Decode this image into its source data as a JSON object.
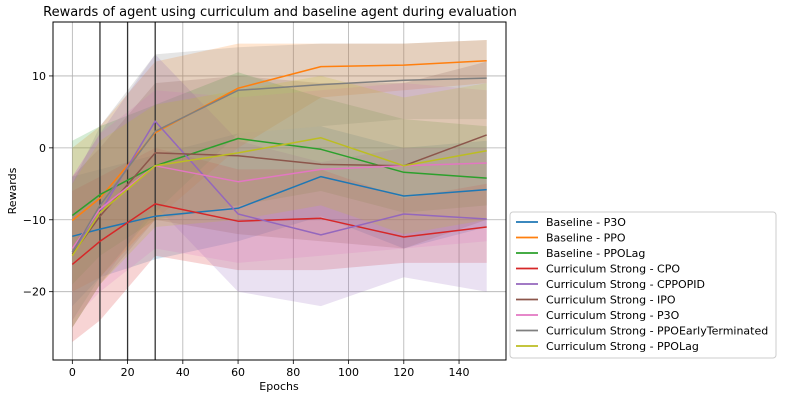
{
  "chart_data": {
    "type": "line",
    "title": "Rewards of agent using curriculum and baseline agent during evaluation",
    "xlabel": "Epochs",
    "ylabel": "Rewards",
    "xlim": [
      -7,
      157
    ],
    "ylim": [
      -29.5,
      17.5
    ],
    "xticks": [
      0,
      20,
      40,
      60,
      80,
      100,
      120,
      140
    ],
    "yticks": [
      -20,
      -10,
      0,
      10
    ],
    "grid": true,
    "legend_position": "outside-right",
    "vertical_markers": [
      10,
      20,
      30
    ],
    "x": [
      0,
      10,
      30,
      60,
      90,
      120,
      150
    ],
    "series": [
      {
        "name": "Baseline - P3O",
        "color": "#1f77b4",
        "values": [
          -12.3,
          -11.3,
          -9.5,
          -8.4,
          -4.0,
          -6.7,
          -5.8
        ],
        "lower": [
          -22,
          -18,
          -15.5,
          -13,
          -9.5,
          -14,
          -11
        ],
        "upper": [
          -4,
          -3,
          -1,
          2,
          3,
          0,
          1
        ]
      },
      {
        "name": "Baseline - PPO",
        "color": "#ff7f0e",
        "values": [
          -10.1,
          -7.0,
          2.1,
          8.3,
          11.3,
          11.5,
          12.1
        ],
        "lower": [
          -20,
          -18,
          -10,
          0,
          7,
          8,
          9
        ],
        "upper": [
          0,
          3,
          12,
          14.5,
          14.5,
          14.5,
          15
        ]
      },
      {
        "name": "Baseline - PPOLag",
        "color": "#2ca02c",
        "values": [
          -9.4,
          -6.5,
          -2.5,
          1.3,
          -0.2,
          -3.4,
          -4.2
        ],
        "lower": [
          -19,
          -15,
          -10,
          -8,
          -6,
          -9,
          -8
        ],
        "upper": [
          1,
          3,
          6,
          10.5,
          7,
          4,
          3
        ]
      },
      {
        "name": "Curriculum Strong - CPO",
        "color": "#d62728",
        "values": [
          -16.2,
          -13.0,
          -7.8,
          -10.2,
          -9.8,
          -12.4,
          -11.0
        ],
        "lower": [
          -27,
          -24,
          -15,
          -17,
          -17,
          -16,
          -16
        ],
        "upper": [
          -6,
          -4,
          0,
          -3,
          -3,
          -7,
          -5
        ]
      },
      {
        "name": "Curriculum Strong - CPPOPID",
        "color": "#9467bd",
        "values": [
          -14.5,
          -9.0,
          3.7,
          -9.2,
          -12.1,
          -9.2,
          -9.9
        ],
        "lower": [
          -25,
          -19,
          -8,
          -20,
          -22,
          -18,
          -20
        ],
        "upper": [
          -4,
          2,
          13,
          1,
          -2,
          0,
          0
        ]
      },
      {
        "name": "Curriculum Strong - IPO",
        "color": "#8c564b",
        "values": [
          -14.8,
          -9.5,
          -0.7,
          -1.1,
          -2.3,
          -2.5,
          1.8
        ],
        "lower": [
          -25,
          -19,
          -10,
          -12,
          -13,
          -14,
          -10
        ],
        "upper": [
          -4,
          0,
          9,
          10,
          9,
          9,
          12
        ]
      },
      {
        "name": "Curriculum Strong - P3O",
        "color": "#e377c2",
        "values": [
          -14.0,
          -8.5,
          -2.5,
          -4.7,
          -3.0,
          -2.5,
          -2.1
        ],
        "lower": [
          -24,
          -20,
          -14,
          -16,
          -15,
          -14,
          -13
        ],
        "upper": [
          -4,
          2,
          8,
          7,
          8,
          9,
          8
        ]
      },
      {
        "name": "Curriculum Strong - PPOEarlyTerminated",
        "color": "#7f7f7f",
        "values": [
          -14.5,
          -8.0,
          2.3,
          8.0,
          8.8,
          9.4,
          9.7
        ],
        "lower": [
          -24,
          -18,
          -9,
          2,
          3,
          4,
          4
        ],
        "upper": [
          -5,
          3,
          13,
          14,
          14.5,
          14.5,
          15
        ]
      },
      {
        "name": "Curriculum Strong - PPOLag",
        "color": "#bcbd22",
        "values": [
          -15.0,
          -9.0,
          -2.5,
          -0.7,
          1.4,
          -2.5,
          -0.4
        ],
        "lower": [
          -25,
          -19,
          -11,
          -10,
          -8,
          -12,
          -10
        ],
        "upper": [
          -5,
          1,
          6,
          8,
          10,
          7,
          9
        ]
      }
    ]
  }
}
